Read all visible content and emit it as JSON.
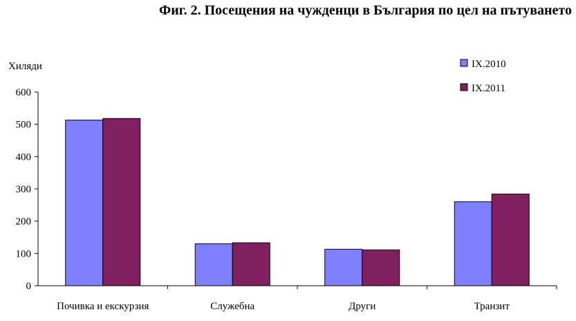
{
  "chart_data": {
    "type": "bar",
    "title": "Фиг. 2. Посещения на чужденци в България по цел на пътуването",
    "ylabel": "Хиляди",
    "xlabel": "",
    "categories": [
      "Почивка и екскурзия",
      "Служебна",
      "Други",
      "Транзит"
    ],
    "series": [
      {
        "name": "IX.2010",
        "values": [
          513,
          130,
          113,
          260
        ],
        "color": "#8080ff"
      },
      {
        "name": "IX.2011",
        "values": [
          518,
          133,
          111,
          284
        ],
        "color": "#802060"
      }
    ],
    "ylim": [
      0,
      600
    ],
    "yticks": [
      0,
      100,
      200,
      300,
      400,
      500,
      600
    ],
    "grid": false,
    "legend_position": "top-right"
  }
}
